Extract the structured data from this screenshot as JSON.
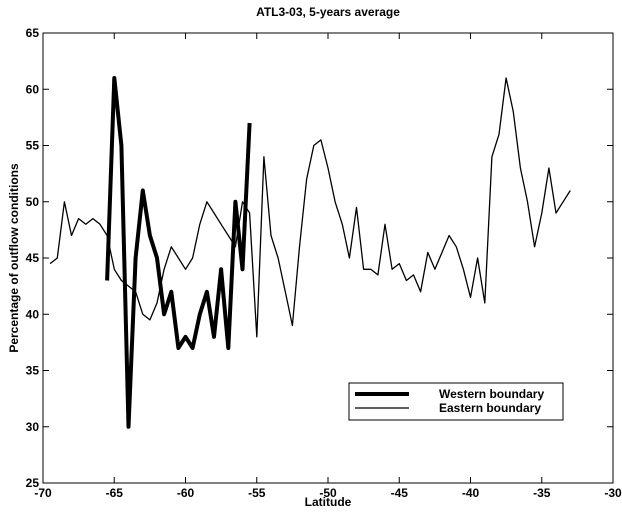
{
  "chart_data": {
    "type": "line",
    "title": "ATL3-03, 5-years average",
    "x_label": "Latitude",
    "y_label": "Percentage of outflow conditions",
    "x": [
      -69.5,
      -69,
      -68.5,
      -68,
      -67.5,
      -67,
      -66.5,
      -66,
      -65.5,
      -65,
      -64.5,
      -64,
      -63.5,
      -63,
      -62.5,
      -62,
      -61.5,
      -61,
      -60.5,
      -60,
      -59.5,
      -59,
      -58.5,
      -58,
      -57.5,
      -57,
      -56.5,
      -56,
      -55.5,
      -55,
      -54.5,
      -54,
      -53.5,
      -53,
      -52.5,
      -52,
      -51.5,
      -51,
      -50.5,
      -50,
      -49.5,
      -49,
      -48.5,
      -48,
      -47.5,
      -47,
      -46.5,
      -46,
      -45.5,
      -45,
      -44.5,
      -44,
      -43.5,
      -43,
      -42.5,
      -42,
      -41.5,
      -41,
      -40.5,
      -40,
      -39.5,
      -39,
      -38.5,
      -38,
      -37.5,
      -37,
      -36.5,
      -36,
      -35.5,
      -35,
      -34.5,
      -34,
      -33.5,
      -33
    ],
    "series": [
      {
        "name": "Western boundary",
        "color": "#000000",
        "line_width": 4,
        "values": [
          null,
          null,
          null,
          null,
          null,
          null,
          null,
          null,
          43,
          61,
          55,
          30,
          45,
          51,
          47,
          45,
          40,
          42,
          37,
          38,
          37,
          40,
          42,
          38,
          44,
          37,
          50,
          44,
          57,
          null,
          null,
          null,
          null,
          null,
          null,
          null,
          null,
          null,
          null,
          null,
          null,
          null,
          null,
          null,
          null,
          null,
          null,
          null,
          null,
          null,
          null,
          null,
          null,
          null,
          null,
          null,
          null,
          null,
          null,
          null,
          null,
          null,
          null,
          null,
          null,
          null,
          null,
          null,
          null,
          null,
          null,
          null,
          null,
          null
        ]
      },
      {
        "name": "Eastern boundary",
        "color": "#000000",
        "line_width": 1.3,
        "values": [
          44.5,
          45,
          50,
          47,
          48.5,
          48,
          48.5,
          48,
          47,
          44,
          43,
          42.5,
          42,
          40,
          39.5,
          41,
          44,
          46,
          45,
          44,
          45,
          48,
          50,
          49,
          48,
          47,
          46,
          50,
          49,
          38,
          54,
          47,
          45,
          42,
          39,
          46,
          52,
          55,
          55.5,
          53,
          50,
          48,
          45,
          49.5,
          44,
          44,
          43.5,
          48,
          44,
          44.5,
          43,
          43.5,
          42,
          45.5,
          44,
          45.5,
          47,
          46,
          44,
          41.5,
          45,
          41,
          54,
          56,
          61,
          58,
          53,
          50,
          46,
          49,
          53,
          49,
          50,
          51
        ]
      }
    ],
    "xlim": [
      -70,
      -30
    ],
    "xticks": [
      -70,
      -65,
      -60,
      -55,
      -50,
      -45,
      -40,
      -35,
      -30
    ],
    "ylim": [
      25,
      65
    ],
    "yticks": [
      25,
      30,
      35,
      40,
      45,
      50,
      55,
      60,
      65
    ],
    "grid": false,
    "legend": "lower right"
  }
}
